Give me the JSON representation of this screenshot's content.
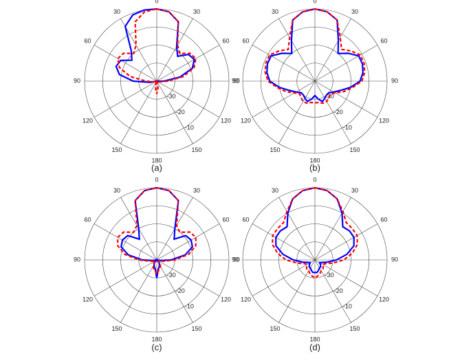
{
  "chart_data": [
    {
      "type": "polar",
      "caption": "(a)",
      "rlim": [
        -40,
        0
      ],
      "rticks": [
        -30,
        -20,
        -10
      ],
      "thetaticks": [
        0,
        30,
        60,
        90,
        120,
        150,
        180,
        {
          "value": 210,
          "label": "150"
        },
        {
          "value": 240,
          "label": "120"
        },
        {
          "value": 270,
          "label": "90"
        },
        {
          "value": 300,
          "label": "60"
        },
        {
          "value": 330,
          "label": "30"
        }
      ],
      "theta": [
        0,
        10,
        20,
        30,
        40,
        50,
        60,
        70,
        80,
        90,
        100,
        110,
        120,
        130,
        140,
        150,
        160,
        170,
        180,
        190,
        200,
        210,
        220,
        230,
        240,
        250,
        260,
        270,
        280,
        290,
        300,
        310,
        320,
        330,
        340,
        350
      ],
      "series": [
        {
          "color": "#0000ff",
          "linestyle": "solid",
          "values": [
            0,
            -1,
            -5,
            -18,
            -22,
            -17,
            -16,
            -19,
            -27,
            -36,
            -40,
            -40,
            -40,
            -40,
            -40,
            -40,
            -40,
            -40,
            -40,
            -40,
            -40,
            -40,
            -40,
            -40,
            -40,
            -40,
            -36,
            -27,
            -19,
            -16,
            -17,
            -22,
            -18,
            -5,
            -1,
            0
          ]
        },
        {
          "color": "#ff0000",
          "linestyle": "dashed",
          "values": [
            0,
            -1,
            -5,
            -17,
            -20,
            -16,
            -15,
            -18,
            -25,
            -34,
            -38,
            -39,
            -40,
            -40,
            -40,
            -40,
            -38,
            -36,
            -33,
            -36,
            -38,
            -40,
            -40,
            -40,
            -40,
            -39,
            -38,
            -34,
            -25,
            -18,
            -15,
            -16,
            -20,
            -17,
            -5,
            -1
          ]
        }
      ]
    },
    {
      "type": "polar",
      "caption": "(b)",
      "rlim": [
        -40,
        0
      ],
      "rticks": [
        -30,
        -20,
        -10
      ],
      "thetaticks": [
        0,
        30,
        60,
        90,
        120,
        150,
        180,
        {
          "value": 210,
          "label": "150"
        },
        {
          "value": 240,
          "label": "120"
        },
        {
          "value": 270,
          "label": "90"
        },
        {
          "value": 300,
          "label": "60"
        },
        {
          "value": 330,
          "label": "30"
        }
      ],
      "theta": [
        0,
        10,
        20,
        30,
        40,
        50,
        60,
        70,
        80,
        90,
        100,
        110,
        120,
        130,
        140,
        150,
        160,
        170,
        180,
        190,
        200,
        210,
        220,
        230,
        240,
        250,
        260,
        270,
        280,
        290,
        300,
        310,
        320,
        330,
        340,
        350
      ],
      "series": [
        {
          "color": "#0000ff",
          "linestyle": "solid",
          "values": [
            0,
            -1,
            -4,
            -14,
            -20,
            -16,
            -12,
            -12,
            -13,
            -15,
            -20,
            -25,
            -28,
            -30,
            -30,
            -29,
            -28,
            -30,
            -32,
            -30,
            -28,
            -29,
            -30,
            -30,
            -28,
            -25,
            -20,
            -15,
            -13,
            -12,
            -12,
            -16,
            -20,
            -14,
            -4,
            -1
          ]
        },
        {
          "color": "#ff0000",
          "linestyle": "dashed",
          "values": [
            0,
            -1,
            -4,
            -12,
            -17,
            -14,
            -11,
            -11,
            -12,
            -14,
            -19,
            -23,
            -27,
            -29,
            -28,
            -27,
            -27,
            -28,
            -28,
            -28,
            -27,
            -27,
            -28,
            -29,
            -27,
            -23,
            -19,
            -14,
            -12,
            -11,
            -11,
            -14,
            -17,
            -12,
            -4,
            -1
          ]
        }
      ]
    },
    {
      "type": "polar",
      "caption": "(c)",
      "rlim": [
        -40,
        0
      ],
      "rticks": [
        -30,
        -20,
        -10
      ],
      "thetaticks": [
        0,
        30,
        60,
        90,
        120,
        150,
        180,
        {
          "value": 210,
          "label": "150"
        },
        {
          "value": 240,
          "label": "120"
        },
        {
          "value": 270,
          "label": "90"
        },
        {
          "value": 300,
          "label": "60"
        },
        {
          "value": 330,
          "label": "30"
        }
      ],
      "theta": [
        0,
        10,
        20,
        30,
        40,
        50,
        60,
        70,
        80,
        90,
        100,
        110,
        120,
        130,
        140,
        150,
        160,
        170,
        180,
        190,
        200,
        210,
        220,
        230,
        240,
        250,
        260,
        270,
        280,
        290,
        300,
        310,
        320,
        330,
        340,
        350
      ],
      "series": [
        {
          "color": "#0000ff",
          "linestyle": "solid",
          "values": [
            0,
            -1,
            -5,
            -20,
            -25,
            -19,
            -18,
            -19,
            -24,
            -32,
            -38,
            -40,
            -40,
            -40,
            -38,
            -37,
            -36,
            -35,
            -30,
            -35,
            -36,
            -37,
            -38,
            -40,
            -40,
            -40,
            -38,
            -32,
            -24,
            -19,
            -18,
            -19,
            -25,
            -20,
            -5,
            -1
          ]
        },
        {
          "color": "#ff0000",
          "linestyle": "dashed",
          "values": [
            0,
            -1,
            -5,
            -18,
            -20,
            -16,
            -15,
            -17,
            -22,
            -30,
            -36,
            -38,
            -39,
            -39,
            -37,
            -36,
            -35,
            -34,
            -32,
            -34,
            -35,
            -36,
            -37,
            -39,
            -39,
            -38,
            -36,
            -30,
            -22,
            -17,
            -15,
            -16,
            -20,
            -18,
            -5,
            -1
          ]
        }
      ]
    },
    {
      "type": "polar",
      "caption": "(d)",
      "rlim": [
        -40,
        0
      ],
      "rticks": [
        -30,
        -20,
        -10
      ],
      "thetaticks": [
        0,
        30,
        60,
        90,
        120,
        150,
        180,
        {
          "value": 210,
          "label": "150"
        },
        {
          "value": 240,
          "label": "120"
        },
        {
          "value": 270,
          "label": "90"
        },
        {
          "value": 300,
          "label": "60"
        },
        {
          "value": 330,
          "label": "30"
        }
      ],
      "theta": [
        0,
        10,
        20,
        30,
        40,
        50,
        60,
        70,
        80,
        90,
        100,
        110,
        120,
        130,
        140,
        150,
        160,
        170,
        180,
        190,
        200,
        210,
        220,
        230,
        240,
        250,
        260,
        270,
        280,
        290,
        300,
        310,
        320,
        330,
        340,
        350
      ],
      "series": [
        {
          "color": "#0000ff",
          "linestyle": "solid",
          "values": [
            0,
            -1,
            -4,
            -10,
            -16,
            -15,
            -15,
            -17,
            -22,
            -28,
            -33,
            -36,
            -37,
            -36,
            -35,
            -35,
            -34,
            -33,
            -33,
            -33,
            -34,
            -35,
            -35,
            -36,
            -37,
            -36,
            -33,
            -28,
            -22,
            -17,
            -15,
            -15,
            -16,
            -10,
            -4,
            -1
          ]
        },
        {
          "color": "#ff0000",
          "linestyle": "dashed",
          "values": [
            0,
            -1,
            -4,
            -9,
            -13,
            -13,
            -13,
            -15,
            -19,
            -24,
            -30,
            -34,
            -35,
            -34,
            -33,
            -33,
            -32,
            -31,
            -30,
            -31,
            -32,
            -33,
            -33,
            -34,
            -35,
            -34,
            -30,
            -24,
            -19,
            -15,
            -13,
            -13,
            -13,
            -9,
            -4,
            -1
          ]
        }
      ]
    }
  ]
}
